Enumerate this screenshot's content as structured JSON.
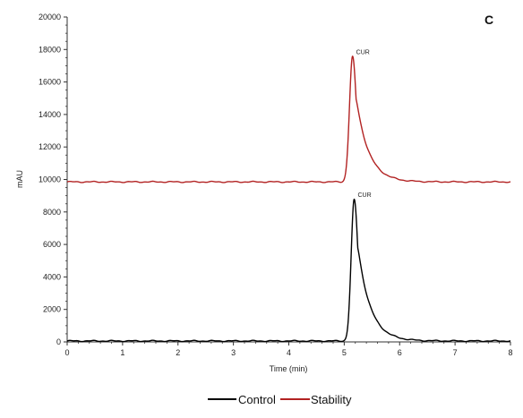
{
  "chart_data": {
    "type": "line",
    "panel_label": "C",
    "xlabel": "Time (min)",
    "ylabel": "mAU",
    "xlim": [
      0,
      8
    ],
    "ylim": [
      0,
      20000
    ],
    "x_ticks": [
      "0",
      "1",
      "2",
      "3",
      "4",
      "5",
      "6",
      "7",
      "8"
    ],
    "y_ticks": [
      "0",
      "2000",
      "4000",
      "6000",
      "8000",
      "10000",
      "12000",
      "14000",
      "16000",
      "18000",
      "20000"
    ],
    "legend_position": "bottom",
    "series": [
      {
        "name": "Control",
        "color": "#000000",
        "baseline": 60,
        "peak_time": 5.18,
        "peak_height": 8750,
        "peak_label": "CUR"
      },
      {
        "name": "Stability",
        "color": "#b22222",
        "baseline": 9850,
        "peak_time": 5.15,
        "peak_height": 17550,
        "peak_label": "CUR"
      }
    ]
  }
}
